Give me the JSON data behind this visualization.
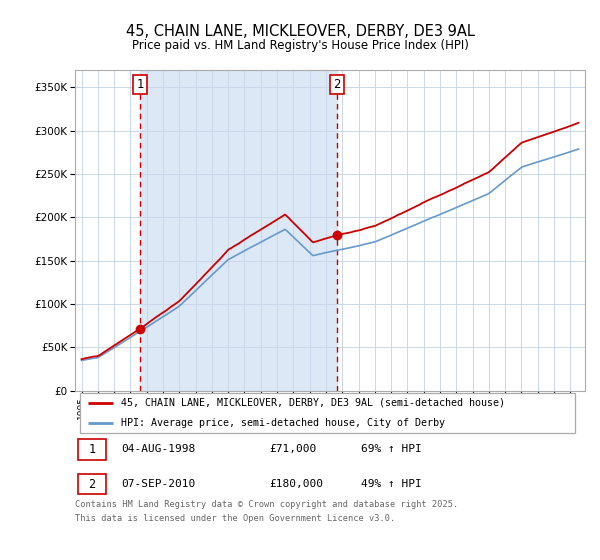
{
  "title": "45, CHAIN LANE, MICKLEOVER, DERBY, DE3 9AL",
  "subtitle": "Price paid vs. HM Land Registry's House Price Index (HPI)",
  "sale1_date": "04-AUG-1998",
  "sale1_price": 71000,
  "sale1_label": "1",
  "sale1_hpi": "69% ↑ HPI",
  "sale2_date": "07-SEP-2010",
  "sale2_price": 180000,
  "sale2_label": "2",
  "sale2_hpi": "49% ↑ HPI",
  "legend_property": "45, CHAIN LANE, MICKLEOVER, DERBY, DE3 9AL (semi-detached house)",
  "legend_hpi": "HPI: Average price, semi-detached house, City of Derby",
  "footer": "Contains HM Land Registry data © Crown copyright and database right 2025.\nThis data is licensed under the Open Government Licence v3.0.",
  "property_color": "#cc0000",
  "hpi_color": "#6699cc",
  "shade_color": "#dce8f5",
  "sale1_x_year": 1998.59,
  "sale2_x_year": 2010.68,
  "ylim_min": 0,
  "ylim_max": 370000,
  "background_color": "#ffffff",
  "grid_color": "#c8d8ea",
  "xlim_min": 1994.6,
  "xlim_max": 2025.9
}
